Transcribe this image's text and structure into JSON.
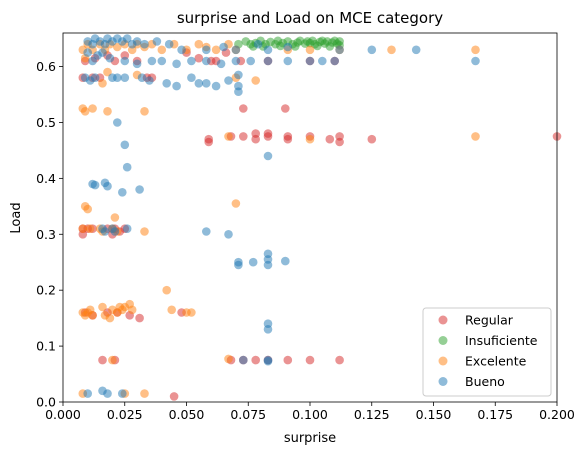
{
  "chart_data": {
    "type": "scatter",
    "title": "surprise and Load on MCE category",
    "xlabel": "surprise",
    "ylabel": "Load",
    "xlim": [
      0.0,
      0.2
    ],
    "ylim": [
      0.0,
      0.66
    ],
    "xticks": [
      "0.000",
      "0.025",
      "0.050",
      "0.075",
      "0.100",
      "0.125",
      "0.150",
      "0.175",
      "0.200"
    ],
    "yticks": [
      "0.0",
      "0.1",
      "0.2",
      "0.3",
      "0.4",
      "0.5",
      "0.6"
    ],
    "legend_position": "lower-right",
    "series": [
      {
        "name": "Regular",
        "color": "#d62728",
        "points": [
          [
            0.008,
            0.58
          ],
          [
            0.012,
            0.58
          ],
          [
            0.015,
            0.58
          ],
          [
            0.009,
            0.61
          ],
          [
            0.013,
            0.615
          ],
          [
            0.018,
            0.62
          ],
          [
            0.021,
            0.61
          ],
          [
            0.025,
            0.62
          ],
          [
            0.03,
            0.61
          ],
          [
            0.034,
            0.58
          ],
          [
            0.036,
            0.58
          ],
          [
            0.05,
            0.625
          ],
          [
            0.055,
            0.615
          ],
          [
            0.06,
            0.61
          ],
          [
            0.062,
            0.61
          ],
          [
            0.066,
            0.625
          ],
          [
            0.072,
            0.61
          ],
          [
            0.083,
            0.61
          ],
          [
            0.1,
            0.61
          ],
          [
            0.11,
            0.61
          ],
          [
            0.059,
            0.465
          ],
          [
            0.059,
            0.47
          ],
          [
            0.068,
            0.475
          ],
          [
            0.073,
            0.525
          ],
          [
            0.073,
            0.475
          ],
          [
            0.078,
            0.48
          ],
          [
            0.078,
            0.47
          ],
          [
            0.083,
            0.475
          ],
          [
            0.083,
            0.48
          ],
          [
            0.09,
            0.525
          ],
          [
            0.091,
            0.475
          ],
          [
            0.091,
            0.47
          ],
          [
            0.1,
            0.475
          ],
          [
            0.108,
            0.47
          ],
          [
            0.112,
            0.475
          ],
          [
            0.112,
            0.465
          ],
          [
            0.125,
            0.47
          ],
          [
            0.2,
            0.475
          ],
          [
            0.008,
            0.31
          ],
          [
            0.008,
            0.3
          ],
          [
            0.01,
            0.31
          ],
          [
            0.012,
            0.31
          ],
          [
            0.018,
            0.31
          ],
          [
            0.02,
            0.3
          ],
          [
            0.021,
            0.31
          ],
          [
            0.023,
            0.305
          ],
          [
            0.025,
            0.31
          ],
          [
            0.009,
            0.16
          ],
          [
            0.012,
            0.155
          ],
          [
            0.018,
            0.16
          ],
          [
            0.022,
            0.16
          ],
          [
            0.027,
            0.155
          ],
          [
            0.031,
            0.15
          ],
          [
            0.048,
            0.16
          ],
          [
            0.016,
            0.075
          ],
          [
            0.021,
            0.075
          ],
          [
            0.068,
            0.075
          ],
          [
            0.073,
            0.075
          ],
          [
            0.078,
            0.075
          ],
          [
            0.083,
            0.075
          ],
          [
            0.091,
            0.075
          ],
          [
            0.1,
            0.075
          ],
          [
            0.112,
            0.075
          ],
          [
            0.045,
            0.01
          ]
        ]
      },
      {
        "name": "Insuficiente",
        "color": "#2ca02c",
        "points": [
          [
            0.071,
            0.64
          ],
          [
            0.074,
            0.645
          ],
          [
            0.076,
            0.64
          ],
          [
            0.078,
            0.642
          ],
          [
            0.08,
            0.646
          ],
          [
            0.082,
            0.64
          ],
          [
            0.084,
            0.644
          ],
          [
            0.086,
            0.64
          ],
          [
            0.087,
            0.646
          ],
          [
            0.089,
            0.642
          ],
          [
            0.091,
            0.645
          ],
          [
            0.093,
            0.64
          ],
          [
            0.095,
            0.643
          ],
          [
            0.096,
            0.646
          ],
          [
            0.098,
            0.641
          ],
          [
            0.099,
            0.645
          ],
          [
            0.1,
            0.642
          ],
          [
            0.101,
            0.646
          ],
          [
            0.102,
            0.64
          ],
          [
            0.104,
            0.644
          ],
          [
            0.105,
            0.646
          ],
          [
            0.106,
            0.641
          ],
          [
            0.107,
            0.645
          ],
          [
            0.109,
            0.643
          ],
          [
            0.11,
            0.646
          ],
          [
            0.111,
            0.641
          ],
          [
            0.112,
            0.645
          ],
          [
            0.077,
            0.636
          ],
          [
            0.081,
            0.636
          ],
          [
            0.088,
            0.637
          ],
          [
            0.094,
            0.636
          ],
          [
            0.103,
            0.637
          ],
          [
            0.108,
            0.636
          ],
          [
            0.112,
            0.638
          ]
        ]
      },
      {
        "name": "Excelente",
        "color": "#ff7f0e",
        "points": [
          [
            0.008,
            0.63
          ],
          [
            0.01,
            0.64
          ],
          [
            0.012,
            0.63
          ],
          [
            0.015,
            0.64
          ],
          [
            0.017,
            0.63
          ],
          [
            0.019,
            0.64
          ],
          [
            0.022,
            0.635
          ],
          [
            0.025,
            0.64
          ],
          [
            0.028,
            0.63
          ],
          [
            0.03,
            0.64
          ],
          [
            0.033,
            0.635
          ],
          [
            0.036,
            0.64
          ],
          [
            0.04,
            0.63
          ],
          [
            0.045,
            0.64
          ],
          [
            0.05,
            0.63
          ],
          [
            0.055,
            0.64
          ],
          [
            0.058,
            0.635
          ],
          [
            0.062,
            0.63
          ],
          [
            0.067,
            0.64
          ],
          [
            0.07,
            0.63
          ],
          [
            0.091,
            0.63
          ],
          [
            0.1,
            0.63
          ],
          [
            0.112,
            0.63
          ],
          [
            0.133,
            0.63
          ],
          [
            0.167,
            0.63
          ],
          [
            0.009,
            0.615
          ],
          [
            0.016,
            0.57
          ],
          [
            0.018,
            0.59
          ],
          [
            0.03,
            0.585
          ],
          [
            0.07,
            0.58
          ],
          [
            0.078,
            0.575
          ],
          [
            0.008,
            0.525
          ],
          [
            0.009,
            0.52
          ],
          [
            0.012,
            0.525
          ],
          [
            0.018,
            0.52
          ],
          [
            0.033,
            0.52
          ],
          [
            0.067,
            0.475
          ],
          [
            0.1,
            0.47
          ],
          [
            0.167,
            0.475
          ],
          [
            0.07,
            0.355
          ],
          [
            0.009,
            0.35
          ],
          [
            0.01,
            0.345
          ],
          [
            0.021,
            0.33
          ],
          [
            0.008,
            0.31
          ],
          [
            0.011,
            0.31
          ],
          [
            0.015,
            0.31
          ],
          [
            0.016,
            0.305
          ],
          [
            0.02,
            0.31
          ],
          [
            0.022,
            0.305
          ],
          [
            0.033,
            0.305
          ],
          [
            0.042,
            0.2
          ],
          [
            0.044,
            0.165
          ],
          [
            0.008,
            0.16
          ],
          [
            0.009,
            0.155
          ],
          [
            0.01,
            0.16
          ],
          [
            0.011,
            0.165
          ],
          [
            0.012,
            0.155
          ],
          [
            0.016,
            0.17
          ],
          [
            0.017,
            0.155
          ],
          [
            0.019,
            0.15
          ],
          [
            0.02,
            0.165
          ],
          [
            0.022,
            0.16
          ],
          [
            0.023,
            0.17
          ],
          [
            0.024,
            0.165
          ],
          [
            0.025,
            0.17
          ],
          [
            0.027,
            0.175
          ],
          [
            0.028,
            0.165
          ],
          [
            0.05,
            0.16
          ],
          [
            0.052,
            0.16
          ],
          [
            0.02,
            0.075
          ],
          [
            0.067,
            0.077
          ],
          [
            0.008,
            0.015
          ],
          [
            0.025,
            0.015
          ],
          [
            0.033,
            0.015
          ]
        ]
      },
      {
        "name": "Bueno",
        "color": "#1f77b4",
        "points": [
          [
            0.01,
            0.645
          ],
          [
            0.012,
            0.64
          ],
          [
            0.013,
            0.65
          ],
          [
            0.015,
            0.645
          ],
          [
            0.017,
            0.64
          ],
          [
            0.018,
            0.65
          ],
          [
            0.02,
            0.645
          ],
          [
            0.022,
            0.65
          ],
          [
            0.024,
            0.645
          ],
          [
            0.026,
            0.65
          ],
          [
            0.028,
            0.64
          ],
          [
            0.03,
            0.645
          ],
          [
            0.033,
            0.64
          ],
          [
            0.038,
            0.645
          ],
          [
            0.043,
            0.64
          ],
          [
            0.048,
            0.63
          ],
          [
            0.058,
            0.63
          ],
          [
            0.065,
            0.635
          ],
          [
            0.07,
            0.63
          ],
          [
            0.079,
            0.64
          ],
          [
            0.083,
            0.63
          ],
          [
            0.091,
            0.635
          ],
          [
            0.112,
            0.63
          ],
          [
            0.125,
            0.63
          ],
          [
            0.143,
            0.63
          ],
          [
            0.01,
            0.625
          ],
          [
            0.014,
            0.62
          ],
          [
            0.016,
            0.625
          ],
          [
            0.019,
            0.615
          ],
          [
            0.012,
            0.61
          ],
          [
            0.025,
            0.61
          ],
          [
            0.03,
            0.605
          ],
          [
            0.036,
            0.61
          ],
          [
            0.04,
            0.61
          ],
          [
            0.046,
            0.605
          ],
          [
            0.052,
            0.61
          ],
          [
            0.058,
            0.61
          ],
          [
            0.064,
            0.605
          ],
          [
            0.07,
            0.61
          ],
          [
            0.076,
            0.61
          ],
          [
            0.083,
            0.61
          ],
          [
            0.091,
            0.61
          ],
          [
            0.1,
            0.61
          ],
          [
            0.105,
            0.61
          ],
          [
            0.11,
            0.61
          ],
          [
            0.167,
            0.61
          ],
          [
            0.009,
            0.58
          ],
          [
            0.011,
            0.575
          ],
          [
            0.013,
            0.58
          ],
          [
            0.02,
            0.58
          ],
          [
            0.022,
            0.58
          ],
          [
            0.025,
            0.58
          ],
          [
            0.032,
            0.58
          ],
          [
            0.035,
            0.575
          ],
          [
            0.042,
            0.57
          ],
          [
            0.046,
            0.565
          ],
          [
            0.052,
            0.58
          ],
          [
            0.055,
            0.57
          ],
          [
            0.058,
            0.57
          ],
          [
            0.062,
            0.565
          ],
          [
            0.067,
            0.575
          ],
          [
            0.071,
            0.585
          ],
          [
            0.071,
            0.565
          ],
          [
            0.071,
            0.555
          ],
          [
            0.022,
            0.5
          ],
          [
            0.025,
            0.46
          ],
          [
            0.083,
            0.44
          ],
          [
            0.026,
            0.42
          ],
          [
            0.012,
            0.39
          ],
          [
            0.013,
            0.388
          ],
          [
            0.017,
            0.392
          ],
          [
            0.018,
            0.386
          ],
          [
            0.024,
            0.375
          ],
          [
            0.031,
            0.38
          ],
          [
            0.016,
            0.31
          ],
          [
            0.017,
            0.305
          ],
          [
            0.02,
            0.31
          ],
          [
            0.021,
            0.305
          ],
          [
            0.026,
            0.31
          ],
          [
            0.058,
            0.305
          ],
          [
            0.067,
            0.3
          ],
          [
            0.071,
            0.25
          ],
          [
            0.071,
            0.245
          ],
          [
            0.077,
            0.25
          ],
          [
            0.083,
            0.265
          ],
          [
            0.083,
            0.255
          ],
          [
            0.083,
            0.245
          ],
          [
            0.09,
            0.252
          ],
          [
            0.083,
            0.14
          ],
          [
            0.083,
            0.13
          ],
          [
            0.073,
            0.075
          ],
          [
            0.083,
            0.075
          ],
          [
            0.083,
            0.073
          ],
          [
            0.01,
            0.015
          ],
          [
            0.016,
            0.02
          ],
          [
            0.018,
            0.015
          ],
          [
            0.024,
            0.015
          ]
        ]
      }
    ]
  }
}
